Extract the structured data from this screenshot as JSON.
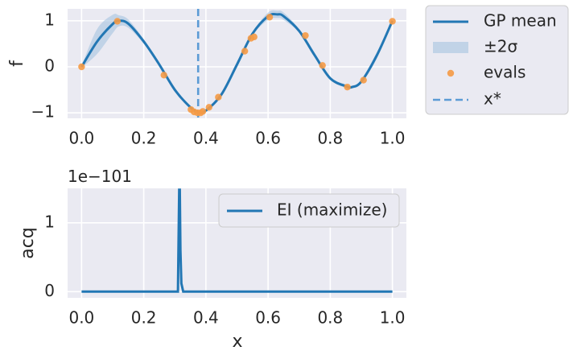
{
  "chart_data": [
    {
      "type": "line",
      "ylabel": "f",
      "xlim": [
        -0.045,
        1.045
      ],
      "ylim": [
        -1.12,
        1.26
      ],
      "xticks": [
        "0.0",
        "0.2",
        "0.4",
        "0.6",
        "0.8",
        "1.0"
      ],
      "yticks": [
        "−1",
        "0",
        "1"
      ],
      "grid": true,
      "legend_position": "outside-upper-right",
      "colors": {
        "mean": "#2277b4",
        "band": "#9fbfdf",
        "evals": "#f59a45",
        "xstar": "#5b9bd5"
      },
      "series": [
        {
          "name": "GP mean",
          "x": [
            0.0,
            0.05,
            0.1,
            0.12,
            0.15,
            0.2,
            0.25,
            0.3,
            0.35,
            0.375,
            0.4,
            0.45,
            0.5,
            0.55,
            0.6,
            0.63,
            0.65,
            0.7,
            0.75,
            0.8,
            0.85,
            0.87,
            0.9,
            0.95,
            1.0
          ],
          "y": [
            0.0,
            0.55,
            0.93,
            1.0,
            0.94,
            0.55,
            0.05,
            -0.5,
            -0.88,
            -0.98,
            -0.95,
            -0.6,
            0.05,
            0.72,
            1.1,
            1.14,
            1.1,
            0.78,
            0.25,
            -0.25,
            -0.42,
            -0.44,
            -0.32,
            0.25,
            1.0
          ]
        },
        {
          "name": "±2σ",
          "x": [
            0.0,
            0.05,
            0.1,
            0.12,
            0.15,
            0.2,
            0.25,
            0.3,
            0.35,
            0.375,
            0.4,
            0.45,
            0.5,
            0.55,
            0.6,
            0.63,
            0.65,
            0.7,
            0.75,
            0.8,
            0.85,
            0.87,
            0.9,
            0.95,
            1.0
          ],
          "upper": [
            0.02,
            0.82,
            1.13,
            1.12,
            1.03,
            0.6,
            0.08,
            -0.45,
            -0.86,
            -0.97,
            -0.93,
            -0.55,
            0.11,
            0.76,
            1.18,
            1.22,
            1.18,
            0.82,
            0.3,
            -0.22,
            -0.38,
            -0.41,
            -0.28,
            0.32,
            1.02
          ],
          "lower": [
            -0.02,
            0.28,
            0.73,
            0.88,
            0.85,
            0.5,
            0.02,
            -0.55,
            -0.9,
            -0.99,
            -0.97,
            -0.65,
            -0.01,
            0.68,
            1.02,
            1.06,
            1.02,
            0.74,
            0.2,
            -0.28,
            -0.46,
            -0.47,
            -0.36,
            0.18,
            0.98
          ]
        },
        {
          "name": "evals",
          "x": [
            0.0,
            0.115,
            0.265,
            0.352,
            0.362,
            0.373,
            0.383,
            0.39,
            0.41,
            0.44,
            0.525,
            0.545,
            0.555,
            0.605,
            0.72,
            0.775,
            0.855,
            0.907,
            1.0
          ],
          "y": [
            0.0,
            0.99,
            -0.18,
            -0.93,
            -0.98,
            -1.0,
            -1.0,
            -0.97,
            -0.88,
            -0.66,
            0.34,
            0.62,
            0.65,
            1.08,
            0.68,
            0.03,
            -0.44,
            -0.29,
            0.99
          ]
        },
        {
          "name": "x*",
          "x": 0.375
        }
      ]
    },
    {
      "type": "line",
      "xlabel": "x",
      "ylabel": "acq",
      "offset_text": "1e−101",
      "xlim": [
        -0.045,
        1.045
      ],
      "ylim": [
        -0.09,
        1.5
      ],
      "xticks": [
        "0.0",
        "0.2",
        "0.4",
        "0.6",
        "0.8",
        "1.0"
      ],
      "yticks": [
        "0",
        "1"
      ],
      "grid": true,
      "legend_position": "upper-right",
      "colors": {
        "ei": "#2277b4"
      },
      "series": [
        {
          "name": "EI (maximize)",
          "x": [
            0.0,
            0.3,
            0.31,
            0.314,
            0.316,
            0.318,
            0.321,
            0.327,
            0.34,
            1.0
          ],
          "y": [
            0.0,
            0.0,
            0.0,
            1.48,
            1.48,
            0.6,
            0.12,
            0.0,
            0.0,
            0.0
          ]
        }
      ]
    }
  ]
}
